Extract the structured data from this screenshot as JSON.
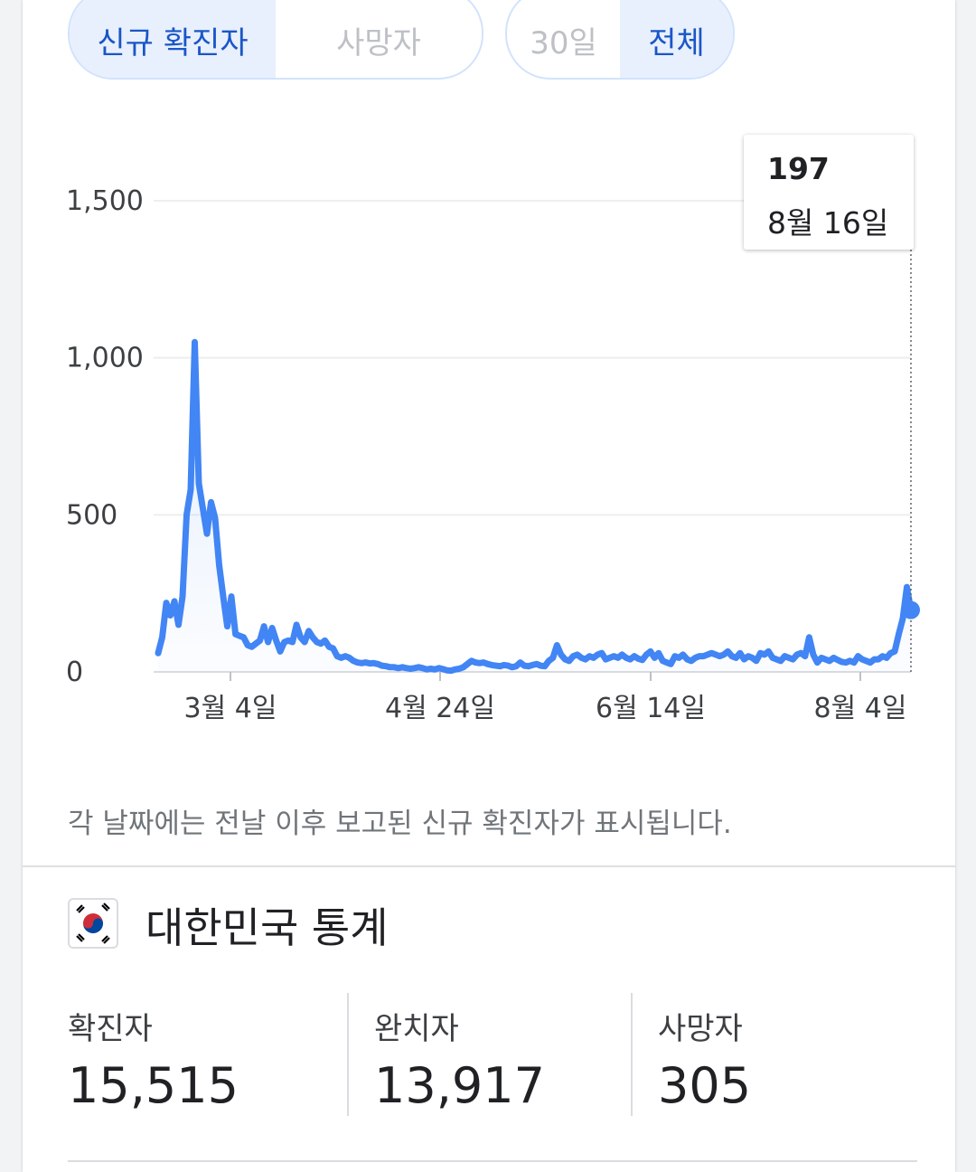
{
  "tabs": {
    "metric": [
      {
        "label": "신규 확진자",
        "active": true
      },
      {
        "label": "사망자",
        "active": false
      }
    ],
    "range": [
      {
        "label": "30일",
        "active": false
      },
      {
        "label": "전체",
        "active": true
      }
    ]
  },
  "tooltip": {
    "value": "197",
    "date": "8월 16일"
  },
  "chart_data": {
    "type": "line",
    "y_ticks": [
      "1,500",
      "1,000",
      "500",
      "0"
    ],
    "ylim": [
      0,
      1500
    ],
    "x_tick_labels": [
      "3월 4일",
      "4월 24일",
      "6월 14일",
      "8월 4일"
    ],
    "series": [
      {
        "name": "",
        "color": "#4285f4",
        "values": [
          60,
          110,
          220,
          180,
          225,
          150,
          240,
          500,
          580,
          1050,
          600,
          520,
          440,
          540,
          490,
          340,
          240,
          145,
          240,
          120,
          115,
          110,
          85,
          80,
          90,
          100,
          145,
          95,
          140,
          100,
          65,
          95,
          100,
          95,
          150,
          110,
          95,
          130,
          110,
          95,
          90,
          100,
          80,
          75,
          50,
          45,
          50,
          45,
          35,
          30,
          28,
          30,
          27,
          28,
          25,
          20,
          18,
          15,
          15,
          12,
          15,
          12,
          10,
          12,
          15,
          12,
          8,
          10,
          8,
          12,
          9,
          5,
          4,
          8,
          10,
          15,
          25,
          35,
          30,
          28,
          30,
          25,
          22,
          20,
          18,
          22,
          20,
          15,
          18,
          30,
          20,
          18,
          22,
          25,
          20,
          18,
          35,
          45,
          85,
          55,
          40,
          35,
          50,
          55,
          45,
          40,
          50,
          45,
          55,
          60,
          40,
          45,
          50,
          45,
          55,
          45,
          40,
          50,
          42,
          38,
          55,
          65,
          45,
          60,
          35,
          30,
          25,
          50,
          45,
          55,
          40,
          35,
          45,
          50,
          50,
          55,
          60,
          55,
          50,
          55,
          65,
          50,
          45,
          60,
          40,
          50,
          45,
          35,
          60,
          55,
          65,
          45,
          40,
          35,
          50,
          45,
          40,
          55,
          60,
          50,
          110,
          55,
          30,
          45,
          40,
          35,
          45,
          38,
          32,
          30,
          35,
          30,
          50,
          40,
          35,
          30,
          40,
          40,
          50,
          45,
          60,
          65,
          120,
          170,
          270,
          197
        ]
      }
    ]
  },
  "note": "각 날짜에는 전날 이후 보고된 신규 확진자가 표시됩니다.",
  "country": {
    "title": "대한민국 통계",
    "flag_icon": "korea-flag-icon"
  },
  "stats": [
    {
      "label": "확진자",
      "value": "15,515"
    },
    {
      "label": "완치자",
      "value": "13,917"
    },
    {
      "label": "사망자",
      "value": "305"
    }
  ]
}
